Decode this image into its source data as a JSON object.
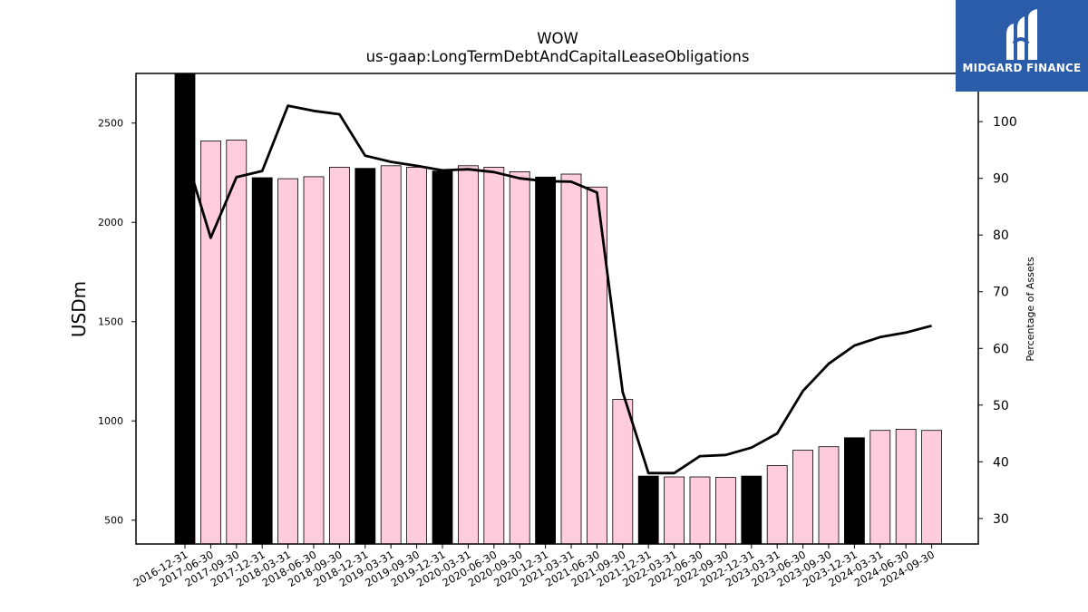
{
  "title": "WOW",
  "subtitle": "us-gaap:LongTermDebtAndCapitalLeaseObligations",
  "logo": {
    "text": "MIDGARD FINANCE",
    "color": "#2a5caa"
  },
  "chart_data": {
    "type": "bar",
    "title": "WOW",
    "subtitle": "us-gaap:LongTermDebtAndCapitalLeaseObligations",
    "ylabel": "USDm",
    "y2label": "Percentage of Assets",
    "categories": [
      "2016-12-31",
      "2017-06-30",
      "2017-09-30",
      "2017-12-31",
      "2018-03-31",
      "2018-06-30",
      "2018-09-30",
      "2018-12-31",
      "2019-03-31",
      "2019-09-30",
      "2019-12-31",
      "2020-03-31",
      "2020-06-30",
      "2020-09-30",
      "2020-12-31",
      "2021-03-31",
      "2021-06-30",
      "2021-09-30",
      "2021-12-31",
      "2022-03-31",
      "2022-06-30",
      "2022-09-30",
      "2022-12-31",
      "2023-03-31",
      "2023-06-30",
      "2023-09-30",
      "2023-12-31",
      "2024-03-31",
      "2024-06-30",
      "2024-09-30"
    ],
    "series": [
      {
        "values": [
          2750,
          2410,
          2415,
          2225,
          2220,
          2230,
          2278,
          2272,
          2285,
          2278,
          2258,
          2285,
          2278,
          2255,
          2228,
          2243,
          2178,
          1108,
          722,
          718,
          718,
          715,
          722,
          775,
          852,
          870,
          915,
          952,
          958,
          952
        ],
        "highlight": [
          true,
          false,
          false,
          true,
          false,
          false,
          false,
          true,
          false,
          false,
          true,
          false,
          false,
          false,
          true,
          false,
          false,
          false,
          true,
          false,
          false,
          false,
          true,
          false,
          false,
          false,
          true,
          false,
          false,
          false
        ],
        "colors": {
          "highlight": "#000000",
          "normal": "#ffccdd"
        },
        "axis": "left"
      },
      {
        "values": [
          94.5,
          79.5,
          90.2,
          91.3,
          102.8,
          101.9,
          101.3,
          94.0,
          92.9,
          92.2,
          91.4,
          91.6,
          91.1,
          90.0,
          89.5,
          89.4,
          87.5,
          52.3,
          38.0,
          38.0,
          41.0,
          41.2,
          42.5,
          45.0,
          52.5,
          57.3,
          60.5,
          62.0,
          62.8,
          64.0
        ],
        "color": "#000000",
        "type": "line",
        "axis": "right"
      }
    ],
    "ylim": [
      380,
      2750
    ],
    "y2lim": [
      25.5,
      108.5
    ],
    "yticks": [
      500,
      1000,
      1500,
      2000,
      2500
    ],
    "y2ticks": [
      30,
      40,
      50,
      60,
      70,
      80,
      90,
      100
    ],
    "grid": false
  }
}
